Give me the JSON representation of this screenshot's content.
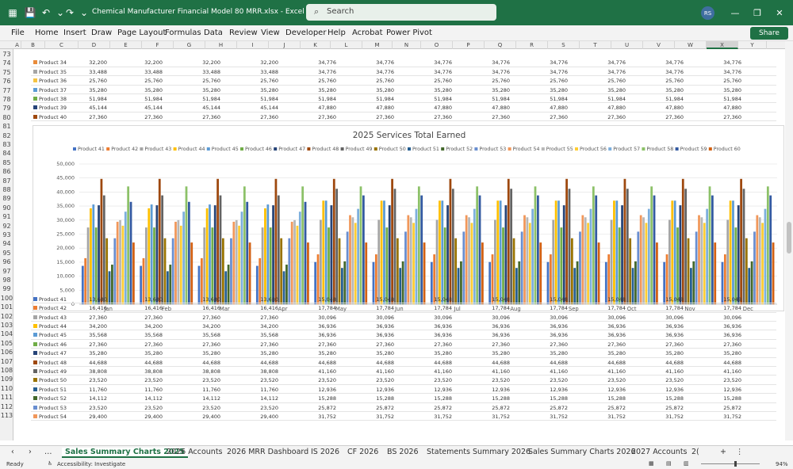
{
  "app": {
    "title": "Chemical Manufacturer Financial Model 80 MRR.xlsx  -  Excel",
    "search_placeholder": "Search",
    "user_initials": "RS",
    "accent": "#1f7145"
  },
  "menu": [
    "File",
    "Home",
    "Insert",
    "Draw",
    "Page Layout",
    "Formulas",
    "Data",
    "Review",
    "View",
    "Developer",
    "Help",
    "Acrobat",
    "Power Pivot"
  ],
  "share_label": "Share",
  "columns": [
    "A",
    "B",
    "C",
    "D",
    "E",
    "F",
    "G",
    "H",
    "I",
    "J",
    "K",
    "L",
    "M",
    "N",
    "O",
    "P",
    "Q",
    "R",
    "S",
    "T",
    "U",
    "V",
    "W",
    "X",
    "Y"
  ],
  "selected_column": "X",
  "row_numbers": [
    "73",
    "74",
    "75",
    "76",
    "77",
    "78",
    "79",
    "80",
    "81",
    "82",
    "83",
    "84",
    "85",
    "86",
    "87",
    "88",
    "89",
    "90",
    "91",
    "92",
    "93",
    "94",
    "95",
    "96",
    "97",
    "98",
    "99",
    "100",
    "101",
    "102",
    "103",
    "104",
    "105",
    "106",
    "107",
    "108",
    "109",
    "110",
    "111",
    "112",
    "113"
  ],
  "top_rows": [
    {
      "name": "Product 34",
      "color": "#e98b3a",
      "values": [
        "32,200",
        "32,200",
        "32,200",
        "32,200",
        "34,776",
        "34,776",
        "34,776",
        "34,776",
        "34,776",
        "34,776",
        "34,776",
        "34,776"
      ]
    },
    {
      "name": "Product 35",
      "color": "#a5a5a5",
      "values": [
        "33,488",
        "33,488",
        "33,488",
        "33,488",
        "34,776",
        "34,776",
        "34,776",
        "34,776",
        "34,776",
        "34,776",
        "34,776",
        "34,776"
      ]
    },
    {
      "name": "Product 36",
      "color": "#f5c342",
      "values": [
        "25,760",
        "25,760",
        "25,760",
        "25,760",
        "25,760",
        "25,760",
        "25,760",
        "25,760",
        "25,760",
        "25,760",
        "25,760",
        "25,760"
      ]
    },
    {
      "name": "Product 37",
      "color": "#5b9bd5",
      "values": [
        "35,280",
        "35,280",
        "35,280",
        "35,280",
        "35,280",
        "35,280",
        "35,280",
        "35,280",
        "35,280",
        "35,280",
        "35,280",
        "35,280"
      ]
    },
    {
      "name": "Product 38",
      "color": "#70ad47",
      "values": [
        "51,984",
        "51,984",
        "51,984",
        "51,984",
        "51,984",
        "51,984",
        "51,984",
        "51,984",
        "51,984",
        "51,984",
        "51,984",
        "51,984"
      ]
    },
    {
      "name": "Product 39",
      "color": "#264478",
      "values": [
        "45,144",
        "45,144",
        "45,144",
        "45,144",
        "47,880",
        "47,880",
        "47,880",
        "47,880",
        "47,880",
        "47,880",
        "47,880",
        "47,880"
      ]
    },
    {
      "name": "Product 40",
      "color": "#9e480e",
      "values": [
        "27,360",
        "27,360",
        "27,360",
        "27,360",
        "27,360",
        "27,360",
        "27,360",
        "27,360",
        "27,360",
        "27,360",
        "27,360",
        "27,360"
      ]
    }
  ],
  "bottom_rows": [
    {
      "name": "Product 41",
      "color": "#4472c4",
      "values": [
        "13,680",
        "13,680",
        "13,680",
        "13,680",
        "15,048",
        "15,048",
        "15,048",
        "15,048",
        "15,048",
        "15,048",
        "15,048",
        "15,048"
      ]
    },
    {
      "name": "Product 42",
      "color": "#ed7d31",
      "values": [
        "16,416",
        "16,416",
        "16,416",
        "16,416",
        "17,784",
        "17,784",
        "17,784",
        "17,784",
        "17,784",
        "17,784",
        "17,784",
        "17,784"
      ]
    },
    {
      "name": "Product 43",
      "color": "#a5a5a5",
      "values": [
        "27,360",
        "27,360",
        "27,360",
        "27,360",
        "30,096",
        "30,096",
        "30,096",
        "30,096",
        "30,096",
        "30,096",
        "30,096",
        "30,096"
      ]
    },
    {
      "name": "Product 44",
      "color": "#ffc000",
      "values": [
        "34,200",
        "34,200",
        "34,200",
        "34,200",
        "36,936",
        "36,936",
        "36,936",
        "36,936",
        "36,936",
        "36,936",
        "36,936",
        "36,936"
      ]
    },
    {
      "name": "Product 45",
      "color": "#5b9bd5",
      "values": [
        "35,568",
        "35,568",
        "35,568",
        "35,568",
        "36,936",
        "36,936",
        "36,936",
        "36,936",
        "36,936",
        "36,936",
        "36,936",
        "36,936"
      ]
    },
    {
      "name": "Product 46",
      "color": "#70ad47",
      "values": [
        "27,360",
        "27,360",
        "27,360",
        "27,360",
        "27,360",
        "27,360",
        "27,360",
        "27,360",
        "27,360",
        "27,360",
        "27,360",
        "27,360"
      ]
    },
    {
      "name": "Product 47",
      "color": "#264478",
      "values": [
        "35,280",
        "35,280",
        "35,280",
        "35,280",
        "35,280",
        "35,280",
        "35,280",
        "35,280",
        "35,280",
        "35,280",
        "35,280",
        "35,280"
      ]
    },
    {
      "name": "Product 48",
      "color": "#9e480e",
      "values": [
        "44,688",
        "44,688",
        "44,688",
        "44,688",
        "44,688",
        "44,688",
        "44,688",
        "44,688",
        "44,688",
        "44,688",
        "44,688",
        "44,688"
      ]
    },
    {
      "name": "Product 49",
      "color": "#636363",
      "values": [
        "38,808",
        "38,808",
        "38,808",
        "38,808",
        "41,160",
        "41,160",
        "41,160",
        "41,160",
        "41,160",
        "41,160",
        "41,160",
        "41,160"
      ]
    },
    {
      "name": "Product 50",
      "color": "#997300",
      "values": [
        "23,520",
        "23,520",
        "23,520",
        "23,520",
        "23,520",
        "23,520",
        "23,520",
        "23,520",
        "23,520",
        "23,520",
        "23,520",
        "23,520"
      ]
    },
    {
      "name": "Product 51",
      "color": "#255e91",
      "values": [
        "11,760",
        "11,760",
        "11,760",
        "11,760",
        "12,936",
        "12,936",
        "12,936",
        "12,936",
        "12,936",
        "12,936",
        "12,936",
        "12,936"
      ]
    },
    {
      "name": "Product 52",
      "color": "#43682b",
      "values": [
        "14,112",
        "14,112",
        "14,112",
        "14,112",
        "15,288",
        "15,288",
        "15,288",
        "15,288",
        "15,288",
        "15,288",
        "15,288",
        "15,288"
      ]
    },
    {
      "name": "Product 53",
      "color": "#698ed0",
      "values": [
        "23,520",
        "23,520",
        "23,520",
        "23,520",
        "25,872",
        "25,872",
        "25,872",
        "25,872",
        "25,872",
        "25,872",
        "25,872",
        "25,872"
      ]
    },
    {
      "name": "Product 54",
      "color": "#f1975a",
      "values": [
        "29,400",
        "29,400",
        "29,400",
        "29,400",
        "31,752",
        "31,752",
        "31,752",
        "31,752",
        "31,752",
        "31,752",
        "31,752",
        "31,752"
      ]
    }
  ],
  "chart_data": {
    "type": "bar",
    "title": "2025 Services Total Earned",
    "categories": [
      "Jan",
      "Feb",
      "Mar",
      "Apr",
      "May",
      "Jun",
      "Jul",
      "Aug",
      "Sep",
      "Oct",
      "Nov",
      "Dec"
    ],
    "ylim": [
      0,
      50000
    ],
    "yticks": [
      "0",
      "5,000",
      "10,000",
      "15,000",
      "20,000",
      "25,000",
      "30,000",
      "35,000",
      "40,000",
      "45,000",
      "50,000"
    ],
    "legend_position": "top",
    "grid": true,
    "series": [
      {
        "name": "Product 41",
        "color": "#4472c4",
        "values": [
          13680,
          13680,
          13680,
          13680,
          15048,
          15048,
          15048,
          15048,
          15048,
          15048,
          15048,
          15048
        ]
      },
      {
        "name": "Product 42",
        "color": "#ed7d31",
        "values": [
          16416,
          16416,
          16416,
          16416,
          17784,
          17784,
          17784,
          17784,
          17784,
          17784,
          17784,
          17784
        ]
      },
      {
        "name": "Product 43",
        "color": "#a5a5a5",
        "values": [
          27360,
          27360,
          27360,
          27360,
          30096,
          30096,
          30096,
          30096,
          30096,
          30096,
          30096,
          30096
        ]
      },
      {
        "name": "Product 44",
        "color": "#ffc000",
        "values": [
          34200,
          34200,
          34200,
          34200,
          36936,
          36936,
          36936,
          36936,
          36936,
          36936,
          36936,
          36936
        ]
      },
      {
        "name": "Product 45",
        "color": "#5b9bd5",
        "values": [
          35568,
          35568,
          35568,
          35568,
          36936,
          36936,
          36936,
          36936,
          36936,
          36936,
          36936,
          36936
        ]
      },
      {
        "name": "Product 46",
        "color": "#70ad47",
        "values": [
          27360,
          27360,
          27360,
          27360,
          27360,
          27360,
          27360,
          27360,
          27360,
          27360,
          27360,
          27360
        ]
      },
      {
        "name": "Product 47",
        "color": "#264478",
        "values": [
          35280,
          35280,
          35280,
          35280,
          35280,
          35280,
          35280,
          35280,
          35280,
          35280,
          35280,
          35280
        ]
      },
      {
        "name": "Product 48",
        "color": "#9e480e",
        "values": [
          44688,
          44688,
          44688,
          44688,
          44688,
          44688,
          44688,
          44688,
          44688,
          44688,
          44688,
          44688
        ]
      },
      {
        "name": "Product 49",
        "color": "#636363",
        "values": [
          38808,
          38808,
          38808,
          38808,
          41160,
          41160,
          41160,
          41160,
          41160,
          41160,
          41160,
          41160
        ]
      },
      {
        "name": "Product 50",
        "color": "#997300",
        "values": [
          23520,
          23520,
          23520,
          23520,
          23520,
          23520,
          23520,
          23520,
          23520,
          23520,
          23520,
          23520
        ]
      },
      {
        "name": "Product 51",
        "color": "#255e91",
        "values": [
          11760,
          11760,
          11760,
          11760,
          12936,
          12936,
          12936,
          12936,
          12936,
          12936,
          12936,
          12936
        ]
      },
      {
        "name": "Product 52",
        "color": "#43682b",
        "values": [
          14112,
          14112,
          14112,
          14112,
          15288,
          15288,
          15288,
          15288,
          15288,
          15288,
          15288,
          15288
        ]
      },
      {
        "name": "Product 53",
        "color": "#698ed0",
        "values": [
          23520,
          23520,
          23520,
          23520,
          25872,
          25872,
          25872,
          25872,
          25872,
          25872,
          25872,
          25872
        ]
      },
      {
        "name": "Product 54",
        "color": "#f1975a",
        "values": [
          29400,
          29400,
          29400,
          29400,
          31752,
          31752,
          31752,
          31752,
          31752,
          31752,
          31752,
          31752
        ]
      },
      {
        "name": "Product 55",
        "color": "#b7b7b7",
        "values": [
          30000,
          30000,
          30000,
          30000,
          31000,
          31000,
          31000,
          31000,
          31000,
          31000,
          31000,
          31000
        ]
      },
      {
        "name": "Product 56",
        "color": "#ffcd33",
        "values": [
          28000,
          28000,
          28000,
          28000,
          29000,
          29000,
          29000,
          29000,
          29000,
          29000,
          29000,
          29000
        ]
      },
      {
        "name": "Product 57",
        "color": "#7cafdd",
        "values": [
          33000,
          33000,
          33000,
          33000,
          34000,
          34000,
          34000,
          34000,
          34000,
          34000,
          34000,
          34000
        ]
      },
      {
        "name": "Product 58",
        "color": "#8cc168",
        "values": [
          42000,
          42000,
          42000,
          42000,
          42000,
          42000,
          42000,
          42000,
          42000,
          42000,
          42000,
          42000
        ]
      },
      {
        "name": "Product 59",
        "color": "#335aa1",
        "values": [
          36500,
          36500,
          36500,
          36500,
          38800,
          38800,
          38800,
          38800,
          38800,
          38800,
          38800,
          38800
        ]
      },
      {
        "name": "Product 60",
        "color": "#d26012",
        "values": [
          22000,
          22000,
          22000,
          22000,
          22000,
          22000,
          22000,
          22000,
          22000,
          22000,
          22000,
          22000
        ]
      }
    ]
  },
  "sheet_tabs": [
    "Sales Summary Charts 2025",
    "2026 Accounts",
    "2026 MRR Dashboard",
    "IS 2026",
    "CF 2026",
    "BS 2026",
    "Statements Summary 2026",
    "Sales Summary Charts 2026",
    "2027 Accounts",
    "2("
  ],
  "active_tab": 0,
  "status": {
    "ready": "Ready",
    "accessibility": "Accessibility: Investigate",
    "zoom": "94%"
  }
}
